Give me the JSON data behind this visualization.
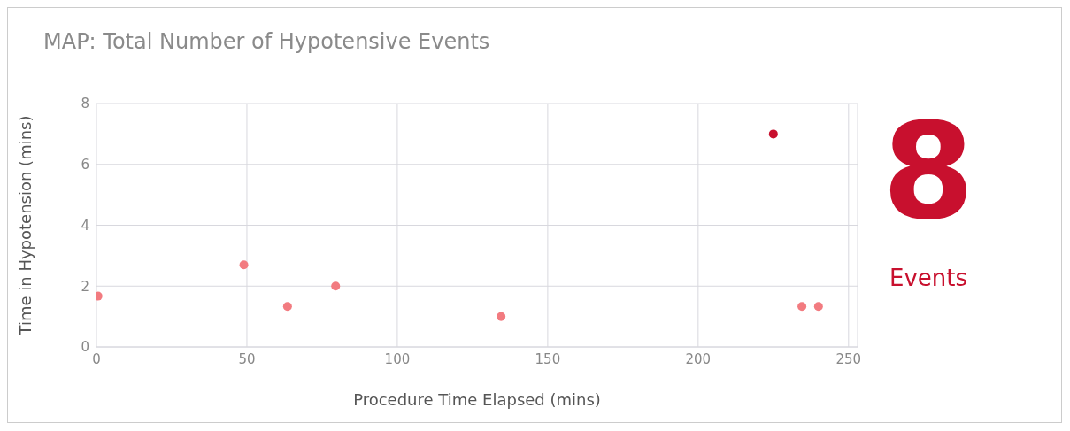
{
  "chart_data": {
    "type": "scatter",
    "title": "MAP: Total Number of Hypotensive Events",
    "xlabel": "Procedure Time Elapsed (mins)",
    "ylabel": "Time in Hypotension (mins)",
    "x": [
      0.5,
      49,
      63.5,
      79.5,
      134.5,
      225,
      234.5,
      240
    ],
    "values": [
      1.67,
      2.7,
      1.33,
      2,
      1,
      7,
      1.33,
      1.33
    ],
    "colors": [
      "#f27b80",
      "#f27b80",
      "#f27b80",
      "#f27b80",
      "#f27b80",
      "#c8102e",
      "#f27b80",
      "#f27b80"
    ],
    "xlim": [
      0,
      253
    ],
    "xticks": [
      0,
      50,
      100,
      150,
      200,
      250
    ],
    "ylim": [
      0,
      8
    ],
    "yticks": [
      0,
      2,
      4,
      6,
      8
    ],
    "grid": true,
    "marker": "circle",
    "annotations": [
      "8",
      "Events"
    ]
  }
}
